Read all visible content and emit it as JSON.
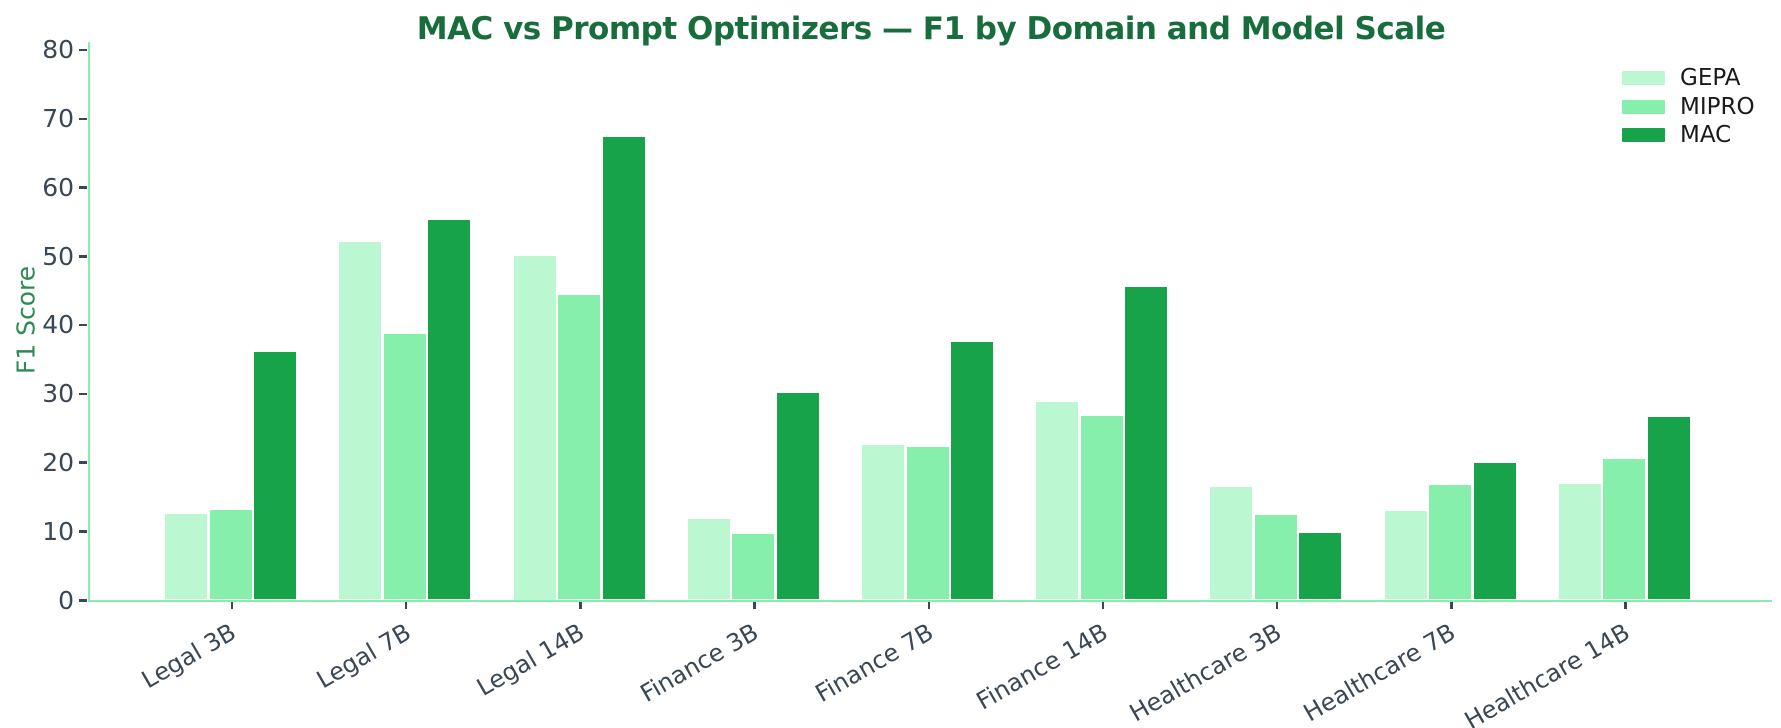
{
  "chart_data": {
    "type": "bar",
    "title": "MAC vs Prompt Optimizers — F1 by Domain and Model Scale",
    "xlabel": "",
    "ylabel": "F1 Score",
    "ylim": [
      0,
      80
    ],
    "yticks": [
      0,
      10,
      20,
      30,
      40,
      50,
      60,
      70,
      80
    ],
    "grid": false,
    "legend_position": "upper right",
    "categories": [
      "Legal 3B",
      "Legal 7B",
      "Legal 14B",
      "Finance 3B",
      "Finance 7B",
      "Finance 14B",
      "Healthcare 3B",
      "Healthcare 7B",
      "Healthcare 14B"
    ],
    "series": [
      {
        "name": "GEPA",
        "color": "#bbf7d0",
        "values": [
          12.4,
          52.0,
          50.0,
          11.7,
          22.4,
          28.7,
          16.4,
          12.8,
          16.8
        ]
      },
      {
        "name": "MIPRO",
        "color": "#86efac",
        "values": [
          13.0,
          38.6,
          44.3,
          9.5,
          22.2,
          26.7,
          12.3,
          16.7,
          20.5
        ]
      },
      {
        "name": "MAC",
        "color": "#16a34a",
        "values": [
          36.0,
          55.2,
          67.2,
          30.0,
          37.4,
          45.4,
          9.6,
          19.9,
          26.5
        ]
      }
    ],
    "colors": {
      "title": "#176d3c",
      "axis_label": "#2e8b57",
      "tick_label": "#3a4754",
      "axis_line": "#86efac",
      "background": "#ffffff"
    }
  }
}
